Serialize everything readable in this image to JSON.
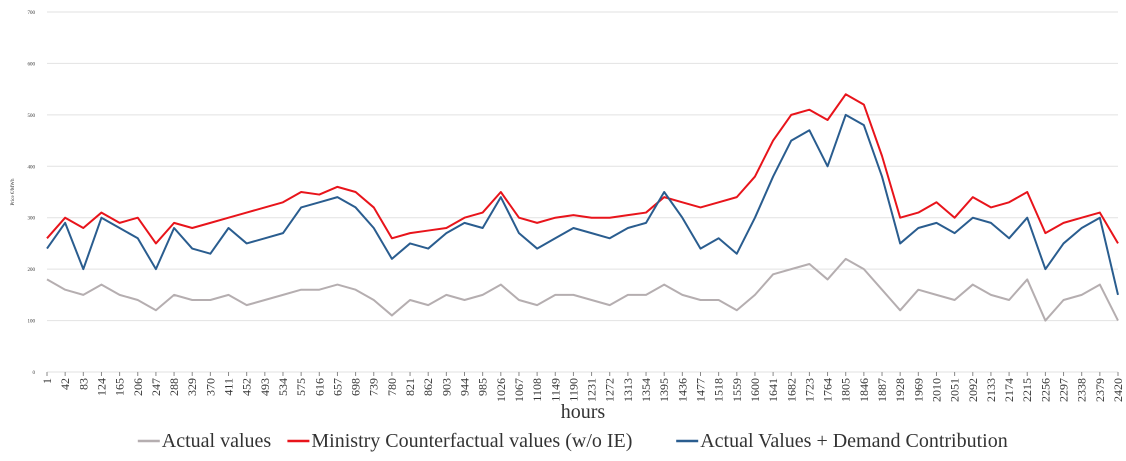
{
  "chart_data": {
    "type": "line",
    "y_label": "Price €/MWh",
    "x_label": "hours",
    "x": [
      1,
      42,
      83,
      124,
      165,
      206,
      247,
      288,
      329,
      370,
      411,
      452,
      493,
      534,
      575,
      616,
      657,
      698,
      739,
      780,
      821,
      862,
      903,
      944,
      985,
      1026,
      1067,
      1108,
      1149,
      1190,
      1231,
      1272,
      1313,
      1354,
      1395,
      1436,
      1477,
      1518,
      1559,
      1600,
      1641,
      1682,
      1723,
      1764,
      1805,
      1846,
      1887,
      1928,
      1969,
      2010,
      2051,
      2092,
      2133,
      2174,
      2215,
      2256,
      2297,
      2338,
      2379,
      2420
    ],
    "series": [
      {
        "name": "Actual values",
        "color": "#b5aeb0",
        "values": [
          180,
          160,
          150,
          170,
          150,
          140,
          120,
          150,
          140,
          140,
          150,
          130,
          140,
          150,
          160,
          160,
          170,
          160,
          140,
          110,
          140,
          130,
          150,
          140,
          150,
          170,
          140,
          130,
          150,
          150,
          140,
          130,
          150,
          150,
          170,
          150,
          140,
          140,
          120,
          150,
          190,
          200,
          210,
          180,
          220,
          200,
          160,
          120,
          160,
          150,
          140,
          170,
          150,
          140,
          180,
          100,
          140,
          150,
          170,
          100
        ]
      },
      {
        "name": "Ministry Counterfactual values (w/o IE)",
        "color": "#e8141b",
        "values": [
          260,
          300,
          280,
          310,
          290,
          300,
          250,
          290,
          280,
          290,
          300,
          310,
          320,
          330,
          350,
          345,
          360,
          350,
          320,
          260,
          270,
          275,
          280,
          300,
          310,
          350,
          300,
          290,
          300,
          305,
          300,
          300,
          305,
          310,
          340,
          330,
          320,
          330,
          340,
          380,
          450,
          500,
          510,
          490,
          540,
          520,
          420,
          300,
          310,
          330,
          300,
          340,
          320,
          330,
          350,
          270,
          290,
          300,
          310,
          250
        ]
      },
      {
        "name": "Actual Values + Demand Contribution",
        "color": "#2a5d8f",
        "values": [
          240,
          290,
          200,
          300,
          280,
          260,
          200,
          280,
          240,
          230,
          280,
          250,
          260,
          270,
          320,
          330,
          340,
          320,
          280,
          220,
          250,
          240,
          270,
          290,
          280,
          340,
          270,
          240,
          260,
          280,
          270,
          260,
          280,
          290,
          350,
          300,
          240,
          260,
          230,
          300,
          380,
          450,
          470,
          400,
          500,
          480,
          380,
          250,
          280,
          290,
          270,
          300,
          290,
          260,
          300,
          200,
          250,
          280,
          300,
          150
        ]
      }
    ],
    "xlim": [
      1,
      2420
    ],
    "xticks": [
      1,
      42,
      83,
      124,
      165,
      206,
      247,
      288,
      329,
      370,
      411,
      452,
      493,
      534,
      575,
      616,
      657,
      698,
      739,
      780,
      821,
      862,
      903,
      944,
      985,
      1026,
      1067,
      1108,
      1149,
      1190,
      1231,
      1272,
      1313,
      1354,
      1395,
      1436,
      1477,
      1518,
      1559,
      1600,
      1641,
      1682,
      1723,
      1764,
      1805,
      1846,
      1887,
      1928,
      1969,
      2010,
      2051,
      2092,
      2133,
      2174,
      2215,
      2256,
      2297,
      2338,
      2379,
      2420
    ],
    "ylim": [
      0,
      700
    ],
    "yticks": [
      0,
      100,
      200,
      300,
      400,
      500,
      600,
      700
    ],
    "grid": true,
    "legend": "bottom"
  }
}
